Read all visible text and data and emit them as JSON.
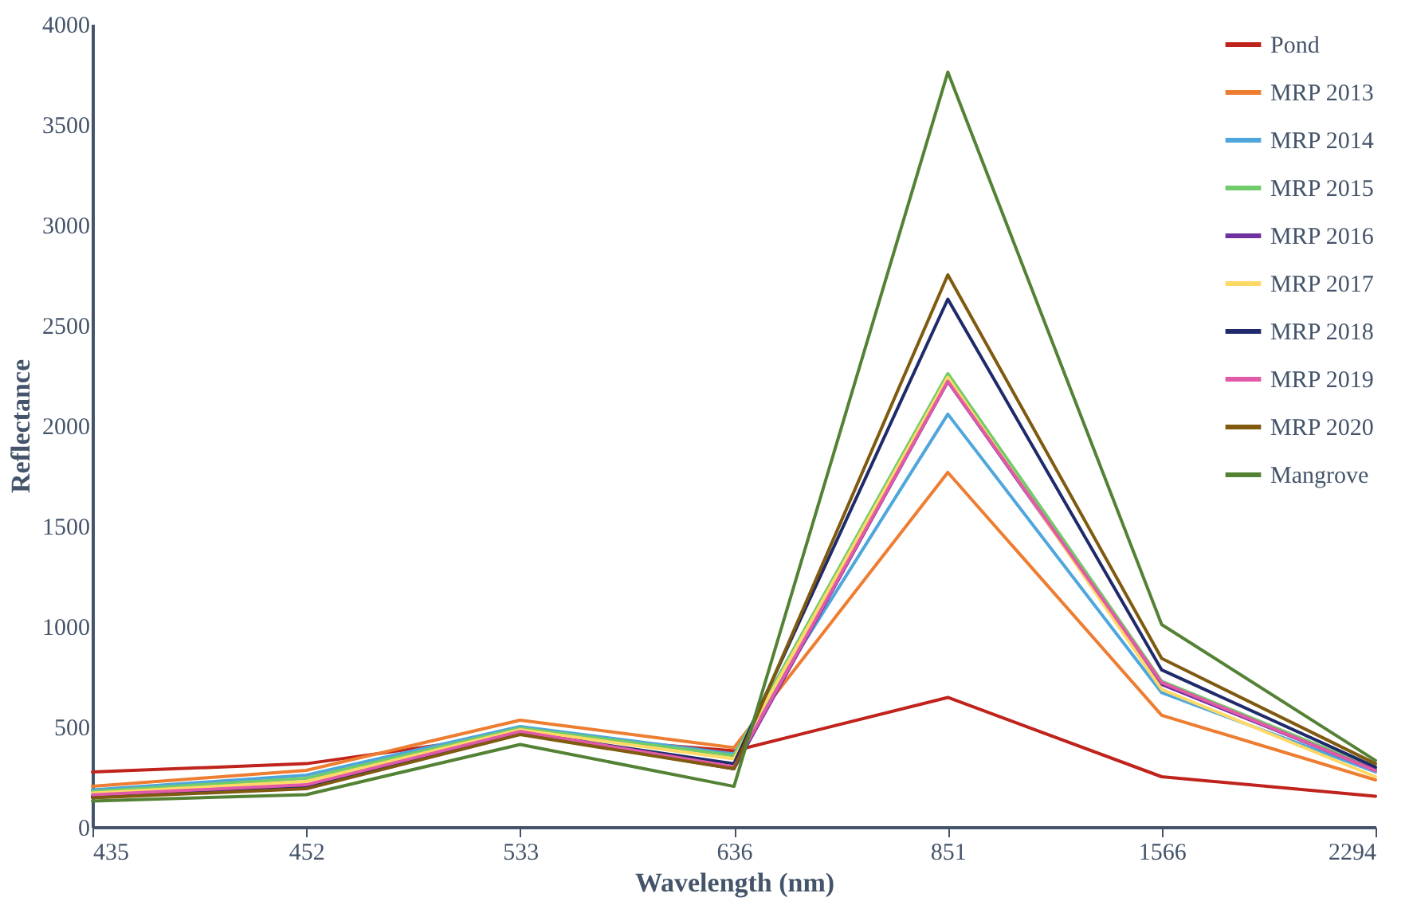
{
  "chart_data": {
    "type": "line",
    "xlabel": "Wavelength (nm)",
    "ylabel": "Reflectance",
    "categories": [
      "435",
      "452",
      "533",
      "636",
      "851",
      "1566",
      "2294"
    ],
    "ylim": [
      0,
      4000
    ],
    "yticks": [
      0,
      500,
      1000,
      1500,
      2000,
      2500,
      3000,
      3500,
      4000
    ],
    "grid": false,
    "legend": "top right",
    "marker": "none",
    "series": [
      {
        "name": "Pond",
        "color": "#c0231c",
        "values": [
          274,
          315,
          465,
          379,
          645,
          250,
          153
        ]
      },
      {
        "name": "MRP 2013",
        "color": "#ed7d31",
        "values": [
          202,
          282,
          532,
          395,
          1766,
          556,
          234
        ]
      },
      {
        "name": "MRP 2014",
        "color": "#4ea6dc",
        "values": [
          185,
          258,
          500,
          363,
          2056,
          669,
          274
        ]
      },
      {
        "name": "MRP 2015",
        "color": "#70cc6a",
        "values": [
          177,
          242,
          492,
          355,
          2258,
          726,
          290
        ]
      },
      {
        "name": "MRP 2016",
        "color": "#7030a0",
        "values": [
          153,
          202,
          468,
          290,
          2218,
          710,
          282
        ]
      },
      {
        "name": "MRP 2017",
        "color": "#ffd966",
        "values": [
          169,
          226,
          484,
          339,
          2240,
          685,
          250
        ]
      },
      {
        "name": "MRP 2018",
        "color": "#1f2a6b",
        "values": [
          150,
          194,
          470,
          315,
          2629,
          782,
          298
        ]
      },
      {
        "name": "MRP 2019",
        "color": "#e15aa8",
        "values": [
          160,
          210,
          475,
          300,
          2220,
          720,
          280
        ]
      },
      {
        "name": "MRP 2020",
        "color": "#7f5a0f",
        "values": [
          145,
          190,
          460,
          290,
          2750,
          839,
          315
        ]
      },
      {
        "name": "Mangrove",
        "color": "#548235",
        "values": [
          129,
          161,
          411,
          202,
          3760,
          1008,
          331
        ]
      }
    ]
  }
}
